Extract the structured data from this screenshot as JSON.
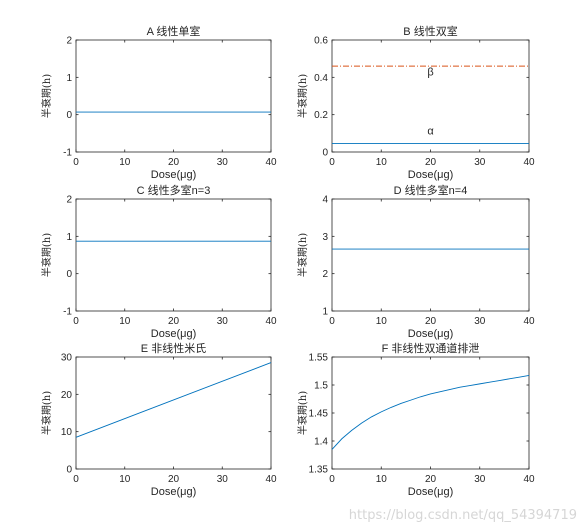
{
  "chart_data": [
    {
      "type": "line",
      "title": "A 线性单室",
      "xlabel": "Dose(μg)",
      "ylabel": "半衰期(h)",
      "xlim": [
        0,
        40
      ],
      "ylim": [
        -1,
        2
      ],
      "xticks": [
        "0",
        "10",
        "20",
        "30",
        "40"
      ],
      "yticks": [
        "-1",
        "0",
        "1",
        "2"
      ],
      "series": [
        {
          "color": "#0072bd",
          "dash": "solid",
          "x": [
            0,
            40
          ],
          "y": [
            0.07,
            0.07
          ]
        }
      ],
      "annotations": []
    },
    {
      "type": "line",
      "title": "B 线性双室",
      "xlabel": "Dose(μg)",
      "ylabel": "半衰期(h)",
      "xlim": [
        0,
        40
      ],
      "ylim": [
        0,
        0.6
      ],
      "xticks": [
        "0",
        "10",
        "20",
        "30",
        "40"
      ],
      "yticks": [
        "0",
        "0.2",
        "0.4",
        "0.6"
      ],
      "series": [
        {
          "color": "#d95319",
          "dash": "dashdot",
          "x": [
            0,
            40
          ],
          "y": [
            0.46,
            0.46
          ]
        },
        {
          "color": "#0072bd",
          "dash": "solid",
          "x": [
            0,
            40
          ],
          "y": [
            0.045,
            0.045
          ]
        }
      ],
      "annotations": [
        {
          "text": "β",
          "x": 20,
          "y": 0.41
        },
        {
          "text": "α",
          "x": 20,
          "y": 0.095
        }
      ]
    },
    {
      "type": "line",
      "title": "C 线性多室n=3",
      "xlabel": "Dose(μg)",
      "ylabel": "半衰期(h)",
      "xlim": [
        0,
        40
      ],
      "ylim": [
        -1,
        2
      ],
      "xticks": [
        "0",
        "10",
        "20",
        "30",
        "40"
      ],
      "yticks": [
        "-1",
        "0",
        "1",
        "2"
      ],
      "series": [
        {
          "color": "#0072bd",
          "dash": "solid",
          "x": [
            0,
            40
          ],
          "y": [
            0.87,
            0.87
          ]
        }
      ],
      "annotations": []
    },
    {
      "type": "line",
      "title": "D 线性多室n=4",
      "xlabel": "Dose(μg)",
      "ylabel": "半衰期(h)",
      "xlim": [
        0,
        40
      ],
      "ylim": [
        1,
        4
      ],
      "xticks": [
        "0",
        "10",
        "20",
        "30",
        "40"
      ],
      "yticks": [
        "1",
        "2",
        "3",
        "4"
      ],
      "series": [
        {
          "color": "#0072bd",
          "dash": "solid",
          "x": [
            0,
            40
          ],
          "y": [
            2.66,
            2.66
          ]
        }
      ],
      "annotations": []
    },
    {
      "type": "line",
      "title": "E 非线性米氏",
      "xlabel": "Dose(μg)",
      "ylabel": "半衰期(h)",
      "xlim": [
        0,
        40
      ],
      "ylim": [
        0,
        30
      ],
      "xticks": [
        "0",
        "10",
        "20",
        "30",
        "40"
      ],
      "yticks": [
        "0",
        "10",
        "20",
        "30"
      ],
      "series": [
        {
          "color": "#0072bd",
          "dash": "solid",
          "x": [
            0,
            40
          ],
          "y": [
            8.5,
            28.5
          ]
        }
      ],
      "annotations": []
    },
    {
      "type": "line",
      "title": "F 非线性双通道排泄",
      "xlabel": "Dose(μg)",
      "ylabel": "半衰期(h)",
      "xlim": [
        0,
        40
      ],
      "ylim": [
        1.35,
        1.55
      ],
      "xticks": [
        "0",
        "10",
        "20",
        "30",
        "40"
      ],
      "yticks": [
        "1.35",
        "1.4",
        "1.45",
        "1.5",
        "1.55"
      ],
      "series": [
        {
          "color": "#0072bd",
          "dash": "solid",
          "x": [
            0,
            2,
            4,
            6,
            8,
            10,
            12,
            14,
            16,
            18,
            20,
            22,
            24,
            26,
            28,
            30,
            32,
            34,
            36,
            38,
            40
          ],
          "y": [
            1.385,
            1.404,
            1.419,
            1.432,
            1.443,
            1.452,
            1.46,
            1.467,
            1.473,
            1.479,
            1.484,
            1.488,
            1.492,
            1.496,
            1.499,
            1.502,
            1.505,
            1.508,
            1.511,
            1.514,
            1.517
          ]
        }
      ],
      "annotations": []
    }
  ],
  "watermark": "https://blog.csdn.net/qq_54394719"
}
